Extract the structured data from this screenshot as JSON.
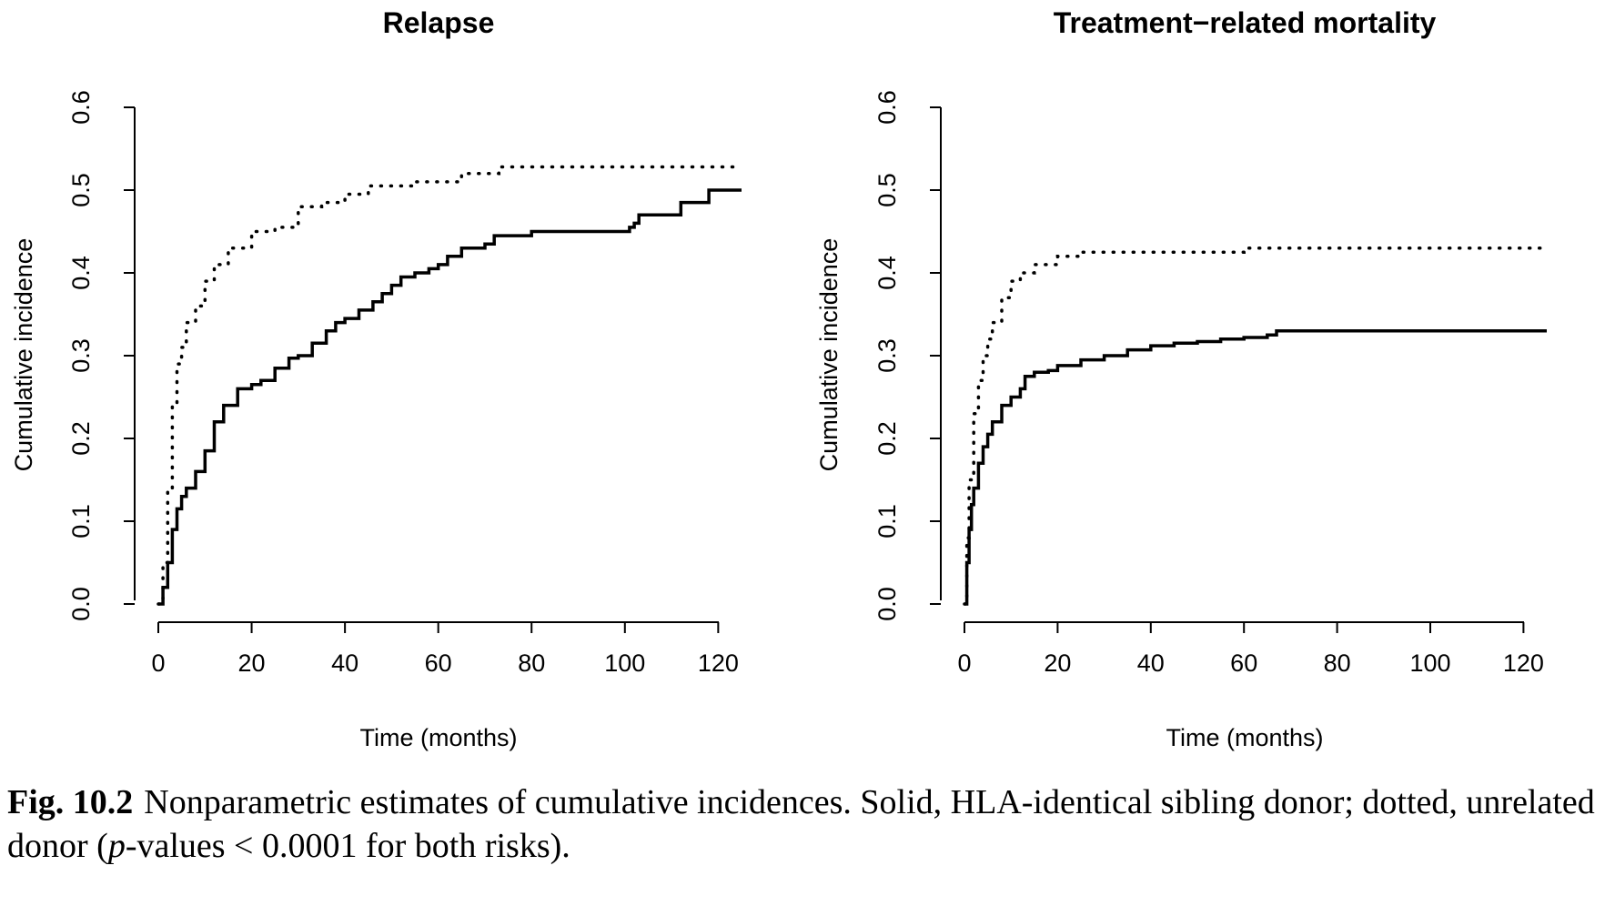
{
  "chart_data": [
    {
      "type": "line",
      "title": "Relapse",
      "xlabel": "Time (months)",
      "ylabel": "Cumulative incidence",
      "xlim": [
        0,
        125
      ],
      "ylim": [
        0,
        0.6
      ],
      "xticks": [
        0,
        20,
        40,
        60,
        80,
        100,
        120
      ],
      "yticks": [
        "0.0",
        "0.1",
        "0.2",
        "0.3",
        "0.4",
        "0.5",
        "0.6"
      ],
      "series": [
        {
          "style": "solid",
          "x": [
            0,
            1,
            2,
            3,
            4,
            5,
            6,
            8,
            10,
            12,
            14,
            17,
            20,
            22,
            25,
            28,
            30,
            33,
            36,
            38,
            40,
            43,
            46,
            48,
            50,
            52,
            55,
            58,
            60,
            62,
            65,
            70,
            72,
            75,
            80,
            90,
            100,
            101,
            102,
            103,
            110,
            112,
            117,
            118,
            125
          ],
          "y": [
            0,
            0.02,
            0.05,
            0.09,
            0.115,
            0.13,
            0.14,
            0.16,
            0.185,
            0.22,
            0.24,
            0.26,
            0.265,
            0.27,
            0.285,
            0.297,
            0.3,
            0.315,
            0.33,
            0.34,
            0.345,
            0.355,
            0.365,
            0.375,
            0.385,
            0.395,
            0.4,
            0.405,
            0.41,
            0.42,
            0.43,
            0.435,
            0.445,
            0.445,
            0.45,
            0.45,
            0.45,
            0.455,
            0.46,
            0.47,
            0.47,
            0.485,
            0.485,
            0.5,
            0.5
          ]
        },
        {
          "style": "dotted",
          "x": [
            0,
            1,
            2,
            3,
            4,
            5,
            6,
            8,
            10,
            12,
            15,
            20,
            25,
            30,
            35,
            40,
            45,
            50,
            55,
            60,
            65,
            70,
            73,
            75,
            80,
            100,
            125
          ],
          "y": [
            0,
            0.05,
            0.14,
            0.24,
            0.29,
            0.31,
            0.34,
            0.36,
            0.39,
            0.41,
            0.43,
            0.45,
            0.455,
            0.48,
            0.485,
            0.495,
            0.505,
            0.505,
            0.51,
            0.51,
            0.52,
            0.52,
            0.528,
            0.528,
            0.528,
            0.528,
            0.528
          ]
        }
      ]
    },
    {
      "type": "line",
      "title": "Treatment−related mortality",
      "xlabel": "Time (months)",
      "ylabel": "Cumulative incidence",
      "xlim": [
        0,
        125
      ],
      "ylim": [
        0,
        0.6
      ],
      "xticks": [
        0,
        20,
        40,
        60,
        80,
        100,
        120
      ],
      "yticks": [
        "0.0",
        "0.1",
        "0.2",
        "0.3",
        "0.4",
        "0.5",
        "0.6"
      ],
      "series": [
        {
          "style": "solid",
          "x": [
            0,
            0.5,
            1,
            1.5,
            2,
            3,
            4,
            5,
            6,
            8,
            10,
            12,
            13,
            15,
            18,
            20,
            25,
            30,
            35,
            40,
            45,
            50,
            55,
            60,
            65,
            67,
            80,
            100,
            125
          ],
          "y": [
            0,
            0.05,
            0.09,
            0.12,
            0.14,
            0.17,
            0.19,
            0.205,
            0.22,
            0.24,
            0.25,
            0.26,
            0.275,
            0.28,
            0.282,
            0.288,
            0.295,
            0.3,
            0.307,
            0.312,
            0.315,
            0.317,
            0.32,
            0.322,
            0.325,
            0.33,
            0.33,
            0.33,
            0.33
          ]
        },
        {
          "style": "dotted",
          "x": [
            0,
            0.5,
            1,
            2,
            3,
            4,
            5,
            6,
            8,
            10,
            12,
            15,
            20,
            25,
            40,
            60,
            80,
            100,
            125
          ],
          "y": [
            0,
            0.08,
            0.15,
            0.23,
            0.27,
            0.3,
            0.32,
            0.34,
            0.37,
            0.39,
            0.4,
            0.41,
            0.42,
            0.425,
            0.425,
            0.43,
            0.43,
            0.43,
            0.43
          ]
        }
      ]
    }
  ],
  "caption": {
    "label": "Fig. 10.2",
    "text_part1": "Nonparametric estimates of cumulative incidences. Solid, HLA-identical sibling donor; dotted, unrelated donor (",
    "italic_p": "p",
    "text_part2": "-values < 0.0001 for both risks)."
  }
}
